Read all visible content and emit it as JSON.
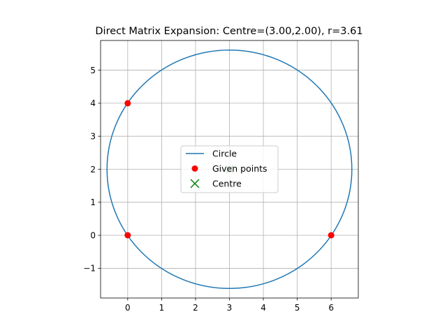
{
  "chart_data": {
    "type": "scatter",
    "title": "Direct Matrix Expansion: Centre=(3.00,2.00), r=3.61",
    "xlabel": "",
    "ylabel": "",
    "xlim": [
      -0.8,
      6.8
    ],
    "ylim": [
      -1.9,
      5.9
    ],
    "x_ticks": [
      0,
      1,
      2,
      3,
      4,
      5,
      6
    ],
    "y_ticks": [
      -1,
      0,
      1,
      2,
      3,
      4,
      5
    ],
    "x_tick_labels": [
      "0",
      "1",
      "2",
      "3",
      "4",
      "5",
      "6"
    ],
    "y_tick_labels": [
      "−1",
      "0",
      "1",
      "2",
      "3",
      "4",
      "5"
    ],
    "grid": true,
    "aspect": "equal",
    "legend_position": "center",
    "circle": {
      "cx": 3.0,
      "cy": 2.0,
      "r": 3.61,
      "color": "#1f77b4"
    },
    "points": [
      {
        "x": 0,
        "y": 4
      },
      {
        "x": 0,
        "y": 0
      },
      {
        "x": 6,
        "y": 0
      }
    ],
    "centre": {
      "x": 3.0,
      "y": 2.0
    },
    "colors": {
      "circle": "#1f77b4",
      "points": "#ff0000",
      "centre": "#008000"
    },
    "legend": [
      {
        "label": "Circle",
        "marker": "line",
        "color": "#1f77b4"
      },
      {
        "label": "Given points",
        "marker": "dot",
        "color": "#ff0000"
      },
      {
        "label": "Centre",
        "marker": "x",
        "color": "#008000"
      }
    ]
  }
}
